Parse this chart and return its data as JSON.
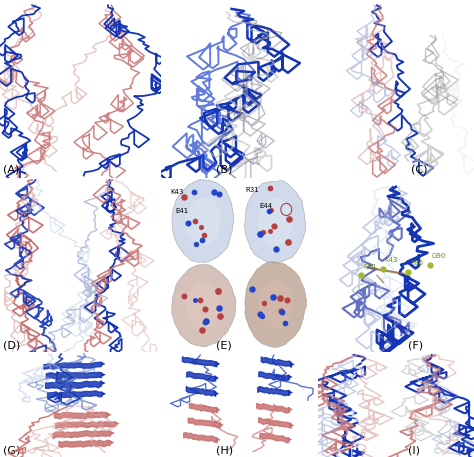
{
  "figure_bg": "#ffffff",
  "panel_labels": [
    "(A)",
    "(B)",
    "(C)",
    "(D)",
    "(E)",
    "(F)",
    "(G)",
    "(H)",
    "(I)"
  ],
  "label_fontsize": 8,
  "blue": "#1535b5",
  "blue2": "#2244cc",
  "blue_mid": "#4466bb",
  "blue_pale": "#8899cc",
  "blue_vp": "#b8c8e8",
  "red": "#b54040",
  "red_mid": "#c87070",
  "red_pale": "#d8a0a0",
  "red_vp": "#eebbbb",
  "gray": "#888888",
  "gray_light": "#bbbbbb",
  "gray_vl": "#dddddd",
  "white": "#ffffff",
  "green_dark": "#6a8a10",
  "green": "#a0b830",
  "brown": "#8b5e3c"
}
